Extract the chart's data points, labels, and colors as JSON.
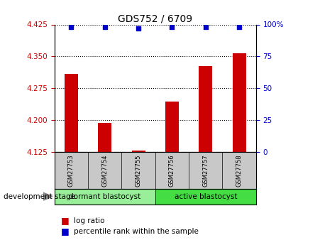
{
  "title": "GDS752 / 6709",
  "samples": [
    "GSM27753",
    "GSM27754",
    "GSM27755",
    "GSM27756",
    "GSM27757",
    "GSM27758"
  ],
  "log_ratio": [
    4.308,
    4.193,
    4.128,
    4.243,
    4.328,
    4.358
  ],
  "percentile_rank": [
    98,
    98,
    97,
    98,
    98,
    98
  ],
  "ylim_left": [
    4.125,
    4.425
  ],
  "ylim_right": [
    0,
    100
  ],
  "yticks_left": [
    4.125,
    4.2,
    4.275,
    4.35,
    4.425
  ],
  "yticks_right": [
    0,
    25,
    50,
    75,
    100
  ],
  "ytick_labels_right": [
    "0",
    "25",
    "50",
    "75",
    "100%"
  ],
  "bar_color": "#cc0000",
  "dot_color": "#0000cc",
  "groups": [
    {
      "label": "dormant blastocyst",
      "start": 0,
      "end": 3,
      "color": "#99ee99"
    },
    {
      "label": "active blastocyst",
      "start": 3,
      "end": 6,
      "color": "#44dd44"
    }
  ],
  "group_label": "development stage",
  "legend_bar": "log ratio",
  "legend_dot": "percentile rank within the sample",
  "tick_label_color_left": "#cc0000",
  "tick_label_color_right": "#0000cc",
  "bar_base": 4.125,
  "cell_color": "#c8c8c8"
}
